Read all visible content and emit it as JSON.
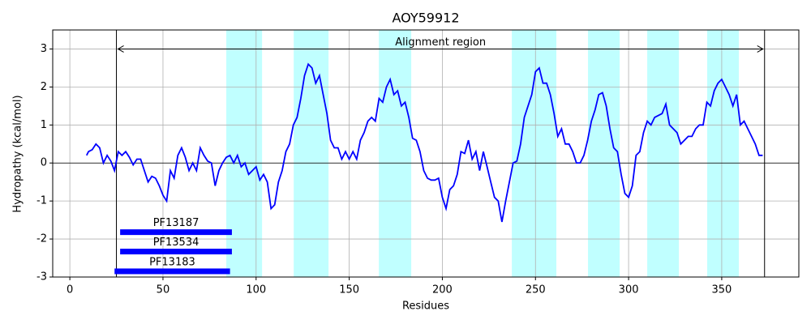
{
  "chart_data": {
    "type": "line",
    "title": "AOY59912",
    "x_label": "Residues",
    "y_label": "Hydropathy (kcal/mol)",
    "xlim": [
      -9.2,
      391.4
    ],
    "ylim": [
      -3,
      3.5
    ],
    "xticks": [
      0,
      50,
      100,
      150,
      200,
      250,
      300,
      350
    ],
    "yticks": [
      -3,
      -2,
      -1,
      0,
      1,
      2,
      3
    ],
    "grid": true,
    "zero_line": true,
    "series": [
      {
        "name": "Hydropathy",
        "color": "#0000ff",
        "x": [
          9,
          10,
          12,
          14,
          16,
          18,
          20,
          22,
          24,
          26,
          28,
          30,
          32,
          34,
          36,
          38,
          40,
          42,
          44,
          46,
          48,
          50,
          52,
          54,
          56,
          58,
          60,
          62,
          64,
          66,
          68,
          70,
          72,
          74,
          76,
          78,
          80,
          82,
          84,
          86,
          88,
          90,
          92,
          94,
          96,
          98,
          100,
          102,
          104,
          106,
          108,
          110,
          112,
          114,
          116,
          118,
          120,
          122,
          124,
          126,
          128,
          130,
          132,
          134,
          136,
          138,
          140,
          142,
          144,
          146,
          148,
          150,
          152,
          154,
          156,
          158,
          160,
          162,
          164,
          166,
          168,
          170,
          172,
          174,
          176,
          178,
          180,
          182,
          184,
          186,
          188,
          190,
          192,
          194,
          196,
          198,
          200,
          202,
          204,
          206,
          208,
          210,
          212,
          214,
          216,
          218,
          220,
          222,
          224,
          226,
          228,
          230,
          232,
          234,
          236,
          238,
          240,
          242,
          244,
          246,
          248,
          250,
          252,
          254,
          256,
          258,
          260,
          262,
          264,
          266,
          268,
          270,
          272,
          274,
          276,
          278,
          280,
          282,
          284,
          286,
          288,
          290,
          292,
          294,
          296,
          298,
          300,
          302,
          304,
          306,
          308,
          310,
          312,
          314,
          316,
          318,
          320,
          322,
          324,
          326,
          328,
          330,
          332,
          334,
          336,
          338,
          340,
          342,
          344,
          346,
          348,
          350,
          352,
          354,
          356,
          358,
          360,
          362,
          364,
          366,
          368,
          370,
          372
        ],
        "values": [
          0.2,
          0.3,
          0.35,
          0.5,
          0.4,
          0,
          0.2,
          0.05,
          -0.2,
          0.3,
          0.2,
          0.3,
          0.15,
          -0.05,
          0.1,
          0.1,
          -0.2,
          -0.5,
          -0.35,
          -0.4,
          -0.6,
          -0.85,
          -1.0,
          -0.2,
          -0.4,
          0.2,
          0.4,
          0.15,
          -0.2,
          0,
          -0.2,
          0.4,
          0.2,
          0.05,
          0,
          -0.6,
          -0.2,
          0,
          0.15,
          0.2,
          0,
          0.2,
          -0.1,
          0,
          -0.3,
          -0.2,
          -0.1,
          -0.45,
          -0.3,
          -0.5,
          -1.2,
          -1.1,
          -0.5,
          -0.2,
          0.3,
          0.5,
          1.0,
          1.2,
          1.7,
          2.3,
          2.6,
          2.5,
          2.1,
          2.3,
          1.8,
          1.3,
          0.6,
          0.4,
          0.4,
          0.1,
          0.3,
          0.1,
          0.3,
          0.1,
          0.6,
          0.8,
          1.1,
          1.2,
          1.1,
          1.7,
          1.6,
          2.0,
          2.2,
          1.8,
          1.9,
          1.5,
          1.6,
          1.2,
          0.65,
          0.6,
          0.3,
          -0.2,
          -0.4,
          -0.45,
          -0.45,
          -0.4,
          -0.9,
          -1.2,
          -0.7,
          -0.6,
          -0.3,
          0.3,
          0.25,
          0.6,
          0.1,
          0.3,
          -0.2,
          0.3,
          -0.1,
          -0.5,
          -0.9,
          -1.0,
          -1.55,
          -1.0,
          -0.5,
          0,
          0.05,
          0.5,
          1.2,
          1.5,
          1.8,
          2.4,
          2.5,
          2.1,
          2.1,
          1.8,
          1.3,
          0.7,
          0.9,
          0.5,
          0.5,
          0.3,
          0,
          0,
          0.2,
          0.6,
          1.1,
          1.4,
          1.8,
          1.85,
          1.5,
          0.9,
          0.4,
          0.3,
          -0.3,
          -0.8,
          -0.9,
          -0.6,
          0.2,
          0.3,
          0.8,
          1.1,
          1.0,
          1.2,
          1.25,
          1.3,
          1.55,
          1.0,
          0.9,
          0.8,
          0.5,
          0.6,
          0.7,
          0.7,
          0.9,
          1.0,
          1.0,
          1.6,
          1.5,
          1.9,
          2.1,
          2.2,
          2.0,
          1.8,
          1.5,
          1.8,
          1.0,
          1.1,
          0.9,
          0.7,
          0.5,
          0.2,
          0.2
        ]
      }
    ],
    "highlight_color": "#c0ffff",
    "highlight_regions": [
      {
        "start": 84,
        "end": 103.2
      },
      {
        "start": 120.2,
        "end": 138.9
      },
      {
        "start": 165.9,
        "end": 183.3
      },
      {
        "start": 237.3,
        "end": 261.2
      },
      {
        "start": 278.2,
        "end": 295.2
      },
      {
        "start": 310,
        "end": 327
      },
      {
        "start": 342.2,
        "end": 359.2
      }
    ],
    "alignment_region": {
      "label": "Alignment region",
      "start": 25,
      "end": 373,
      "y": 3
    },
    "domain_color": "#0000ff",
    "domains": [
      {
        "name": "PF13187",
        "start": 27,
        "end": 87,
        "y": -1.82
      },
      {
        "name": "PF13534",
        "start": 27,
        "end": 87,
        "y": -2.33
      },
      {
        "name": "PF13183",
        "start": 24,
        "end": 86,
        "y": -2.85
      }
    ]
  }
}
